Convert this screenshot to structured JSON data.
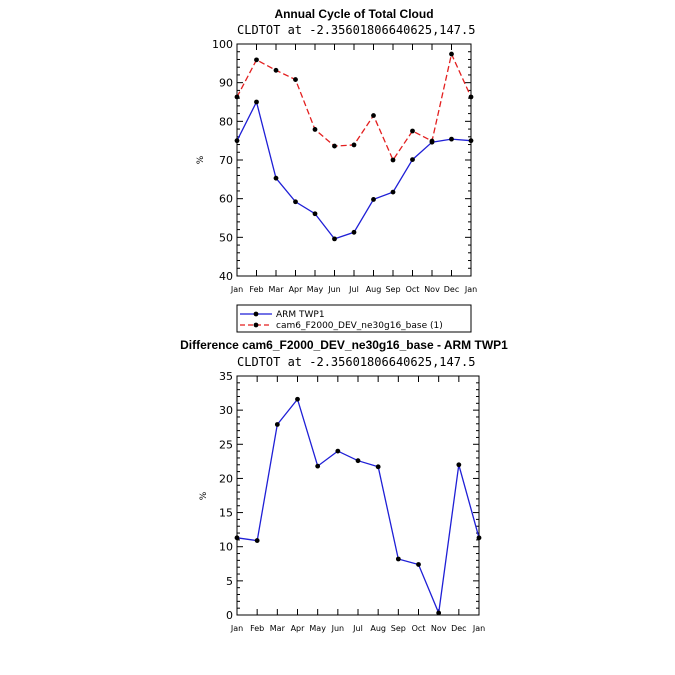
{
  "chart_data": [
    {
      "type": "line",
      "title": "Annual Cycle of Total Cloud",
      "subtitle": "CLDTOT at -2.35601806640625,147.5",
      "xlabel": "",
      "ylabel": "%",
      "categories": [
        "Jan",
        "Feb",
        "Mar",
        "Apr",
        "May",
        "Jun",
        "Jul",
        "Aug",
        "Sep",
        "Oct",
        "Nov",
        "Dec",
        "Jan"
      ],
      "ylim": [
        40,
        100
      ],
      "yticks": [
        40,
        50,
        60,
        70,
        80,
        90,
        100
      ],
      "legend_position": "below",
      "series": [
        {
          "name": "ARM TWP1",
          "color": "#1f1fd6",
          "dash": "solid",
          "values": [
            75,
            85,
            65.3,
            59.2,
            56.1,
            49.6,
            51.3,
            59.8,
            61.7,
            70.1,
            74.6,
            75.4,
            75
          ]
        },
        {
          "name": "cam6_F2000_DEV_ne30g16_base (1)",
          "color": "#e31f1f",
          "dash": "dashed",
          "values": [
            86.3,
            95.9,
            93.2,
            90.8,
            77.9,
            73.6,
            73.9,
            81.5,
            70,
            77.5,
            74.9,
            97.4,
            86.3
          ]
        }
      ]
    },
    {
      "type": "line",
      "title": "Difference cam6_F2000_DEV_ne30g16_base - ARM TWP1",
      "subtitle": "CLDTOT at -2.35601806640625,147.5",
      "xlabel": "",
      "ylabel": "%",
      "categories": [
        "Jan",
        "Feb",
        "Mar",
        "Apr",
        "May",
        "Jun",
        "Jul",
        "Aug",
        "Sep",
        "Oct",
        "Nov",
        "Dec",
        "Jan"
      ],
      "ylim": [
        0,
        35
      ],
      "yticks": [
        0,
        5,
        10,
        15,
        20,
        25,
        30,
        35
      ],
      "series": [
        {
          "name": "Difference",
          "color": "#1f1fd6",
          "dash": "solid",
          "values": [
            11.3,
            10.9,
            27.9,
            31.6,
            21.8,
            24,
            22.6,
            21.7,
            8.2,
            7.4,
            0.3,
            22,
            11.3
          ]
        }
      ]
    }
  ]
}
